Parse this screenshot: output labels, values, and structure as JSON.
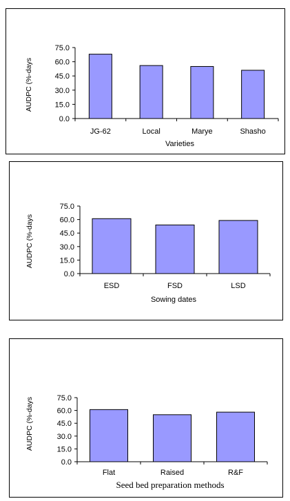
{
  "colors": {
    "bar_fill": "#9999ff",
    "bar_stroke": "#000000",
    "axis": "#000000"
  },
  "chart_data": [
    {
      "type": "bar",
      "title": "",
      "xlabel": "Varieties",
      "ylabel": "AUDPC (%-days",
      "ylim": [
        0,
        75
      ],
      "yticks": [
        "75.0",
        "60.0",
        "45.0",
        "30.0",
        "15.0",
        "0.0"
      ],
      "categories": [
        "JG-62",
        "Local",
        "Marye",
        "Shasho"
      ],
      "values": [
        68,
        56,
        55,
        51
      ],
      "grid": false
    },
    {
      "type": "bar",
      "title": "",
      "xlabel": "Sowing dates",
      "ylabel": "AUDPC (%-days",
      "ylim": [
        0,
        75
      ],
      "yticks": [
        "75.0",
        "60.0",
        "45.0",
        "30.0",
        "15.0",
        "0.0"
      ],
      "categories": [
        "ESD",
        "FSD",
        "LSD"
      ],
      "values": [
        61,
        54,
        59
      ],
      "grid": false
    },
    {
      "type": "bar",
      "title": "",
      "xlabel": "Seed bed preparation methods",
      "ylabel": "AUDPC (%-days",
      "ylim": [
        0,
        75
      ],
      "yticks": [
        "75.0",
        "60.0",
        "45.0",
        "30.0",
        "15.0",
        "0.0"
      ],
      "categories": [
        "Flat",
        "Raised",
        "R&F"
      ],
      "values": [
        61,
        55,
        58
      ],
      "grid": false
    }
  ]
}
